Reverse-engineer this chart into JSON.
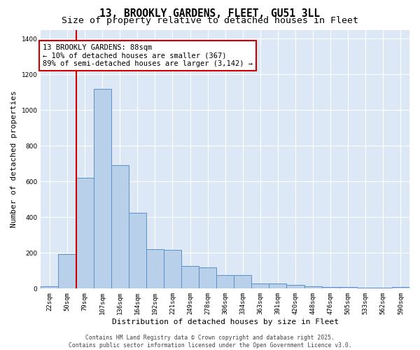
{
  "title_line1": "13, BROOKLY GARDENS, FLEET, GU51 3LL",
  "title_line2": "Size of property relative to detached houses in Fleet",
  "xlabel": "Distribution of detached houses by size in Fleet",
  "ylabel": "Number of detached properties",
  "categories": [
    "22sqm",
    "50sqm",
    "79sqm",
    "107sqm",
    "136sqm",
    "164sqm",
    "192sqm",
    "221sqm",
    "249sqm",
    "278sqm",
    "306sqm",
    "334sqm",
    "363sqm",
    "391sqm",
    "420sqm",
    "448sqm",
    "476sqm",
    "505sqm",
    "533sqm",
    "562sqm",
    "590sqm"
  ],
  "values": [
    15,
    195,
    620,
    1120,
    690,
    425,
    220,
    215,
    125,
    120,
    75,
    75,
    28,
    28,
    22,
    15,
    10,
    8,
    5,
    4,
    8
  ],
  "bar_color": "#b8d0ea",
  "bar_edge_color": "#5b8fc9",
  "fig_background_color": "#ffffff",
  "plot_background_color": "#dce8f5",
  "grid_color": "#ffffff",
  "vline_x": 1.5,
  "vline_color": "#cc0000",
  "annotation_text": "13 BROOKLY GARDENS: 88sqm\n← 10% of detached houses are smaller (367)\n89% of semi-detached houses are larger (3,142) →",
  "annotation_box_facecolor": "#ffffff",
  "annotation_box_edgecolor": "#cc0000",
  "ylim": [
    0,
    1450
  ],
  "yticks": [
    0,
    200,
    400,
    600,
    800,
    1000,
    1200,
    1400
  ],
  "copyright_text": "Contains HM Land Registry data © Crown copyright and database right 2025.\nContains public sector information licensed under the Open Government Licence v3.0.",
  "title_fontsize": 10.5,
  "subtitle_fontsize": 9.5,
  "ylabel_fontsize": 8,
  "xlabel_fontsize": 8,
  "tick_fontsize": 6.5,
  "annotation_fontsize": 7.5,
  "copyright_fontsize": 5.8
}
